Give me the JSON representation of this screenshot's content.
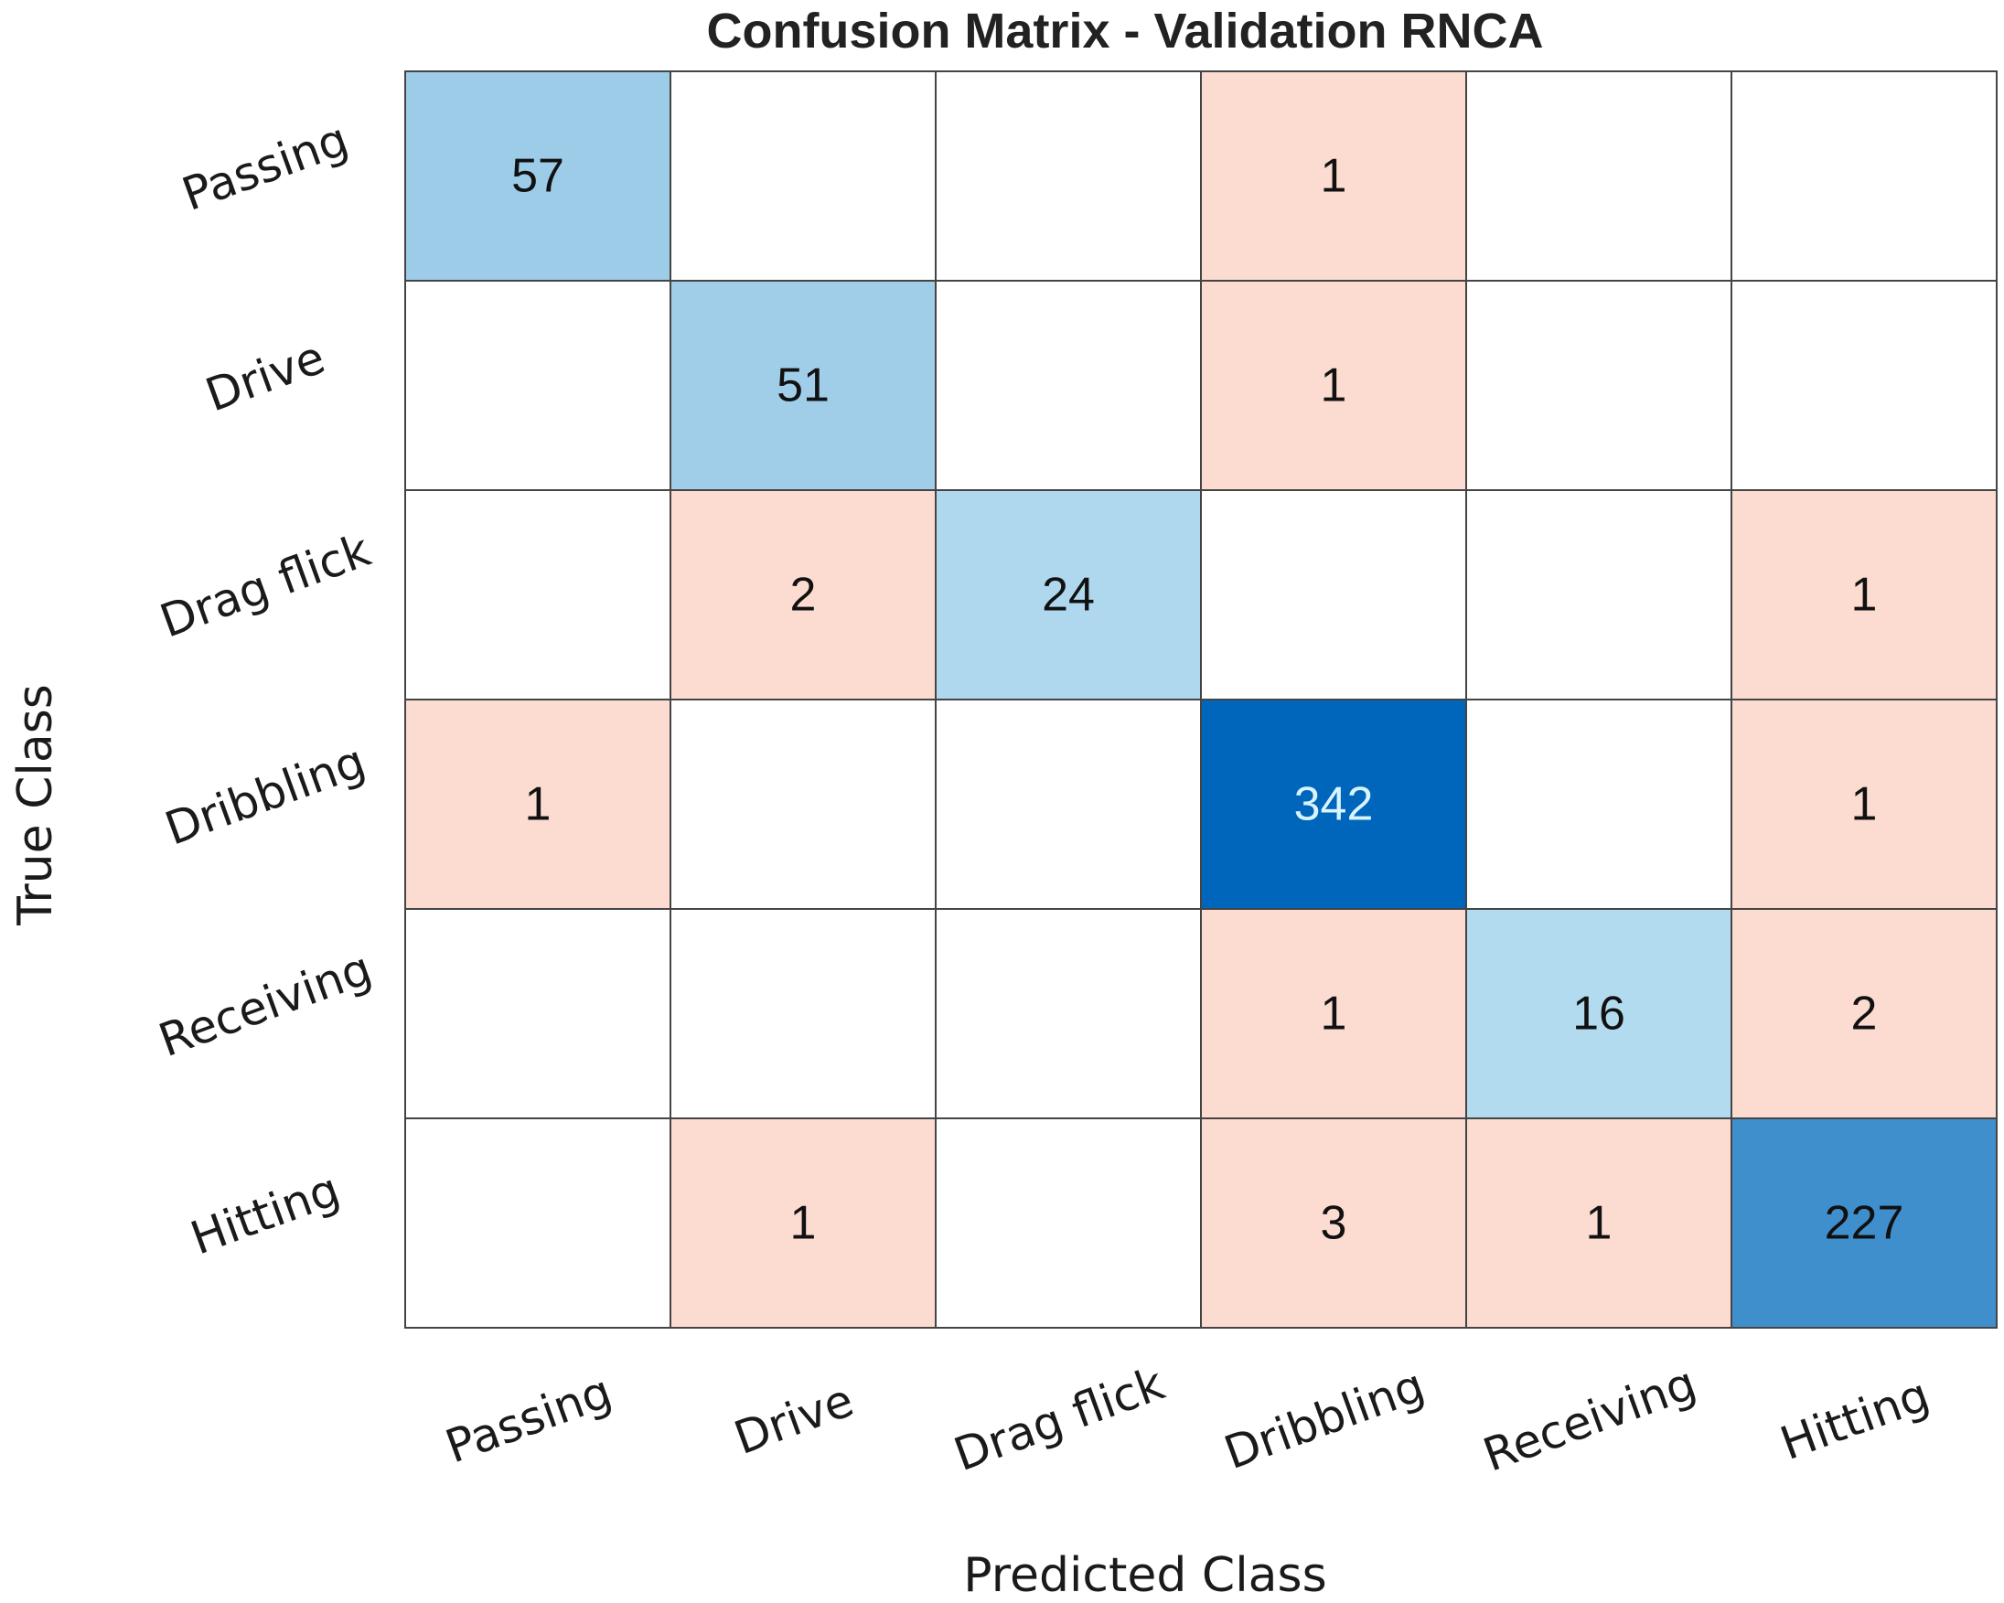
{
  "chart_data": {
    "type": "heatmap",
    "title": "Confusion Matrix - Validation RNCA",
    "xlabel": "Predicted Class",
    "ylabel": "True Class",
    "row_labels": [
      "Passing",
      "Drive",
      "Drag flick",
      "Dribbling",
      "Receiving",
      "Hitting"
    ],
    "col_labels": [
      "Passing",
      "Drive",
      "Drag flick",
      "Dribbling",
      "Receiving",
      "Hitting"
    ],
    "matrix": [
      [
        57,
        0,
        0,
        1,
        0,
        0
      ],
      [
        0,
        51,
        0,
        1,
        0,
        0
      ],
      [
        0,
        2,
        24,
        0,
        0,
        1
      ],
      [
        1,
        0,
        0,
        342,
        0,
        1
      ],
      [
        0,
        0,
        0,
        1,
        16,
        2
      ],
      [
        0,
        1,
        0,
        3,
        1,
        227
      ]
    ],
    "colors": {
      "diagonal_low": "#b3dbef",
      "diagonal_high": "#0066bb",
      "off_diagonal": "#fcdcd0",
      "empty": "#ffffff",
      "grid": "#444444",
      "text_dark": "#111111",
      "text_light": "#d8f4ff"
    }
  }
}
